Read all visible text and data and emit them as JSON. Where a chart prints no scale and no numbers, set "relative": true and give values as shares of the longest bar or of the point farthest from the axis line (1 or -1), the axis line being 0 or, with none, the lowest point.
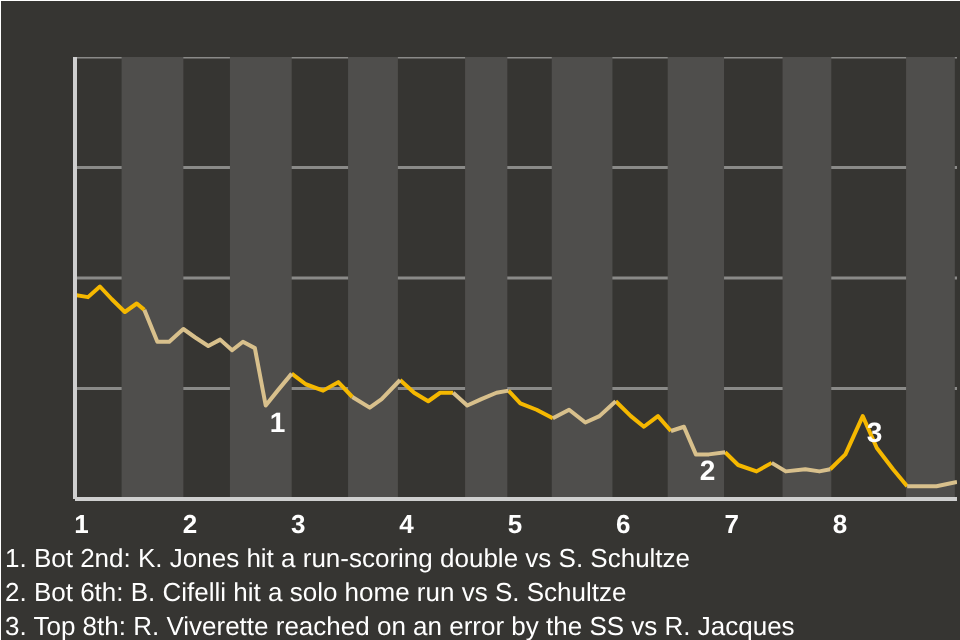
{
  "chart_data": {
    "type": "line",
    "relative": true,
    "ref_lines": [
      {
        "axis": "y",
        "value": 0.52,
        "color": "#8a8a88"
      },
      {
        "axis": "y",
        "value": 1.04,
        "color": "#8a8a88"
      },
      {
        "axis": "y",
        "value": 1.56,
        "color": "#8a8a88"
      },
      {
        "axis": "y",
        "value": 2.08,
        "color": "#8a8a88"
      }
    ],
    "x": [
      0.94,
      1.06,
      1.17,
      1.28,
      1.4,
      1.51,
      1.58,
      1.7,
      1.81,
      1.94,
      2.05,
      2.17,
      2.28,
      2.39,
      2.49,
      2.6,
      2.7,
      2.81,
      2.94,
      3.07,
      3.23,
      3.37,
      3.5,
      3.66,
      3.77,
      3.94,
      4.07,
      4.2,
      4.31,
      4.43,
      4.56,
      4.69,
      4.83,
      4.94,
      5.05,
      5.2,
      5.35,
      5.5,
      5.65,
      5.78,
      5.93,
      6.07,
      6.19,
      6.32,
      6.44,
      6.56,
      6.67,
      6.79,
      6.94,
      7.06,
      7.23,
      7.37,
      7.5,
      7.68,
      7.81,
      7.91,
      8.05,
      8.21,
      8.34,
      8.49,
      8.62,
      8.89,
      9.08
    ],
    "xlim": [
      0.94,
      9.08
    ],
    "xticks": [
      1,
      2,
      3,
      4,
      5,
      6,
      7,
      8
    ],
    "series": [
      {
        "color": "#f5b800",
        "values": [
          0.96,
          0.95,
          1.0,
          0.94,
          0.88,
          0.92,
          0.89,
          null,
          null,
          null,
          null,
          null,
          null,
          null,
          null,
          null,
          null,
          null,
          0.59,
          0.54,
          0.51,
          0.55,
          0.48,
          null,
          null,
          0.56,
          0.5,
          0.46,
          0.5,
          0.5,
          null,
          null,
          null,
          0.51,
          0.45,
          0.42,
          0.38,
          null,
          null,
          null,
          0.46,
          0.39,
          0.34,
          0.39,
          0.32,
          null,
          null,
          null,
          0.22,
          0.16,
          0.13,
          0.17,
          null,
          null,
          null,
          0.14,
          0.21,
          0.39,
          0.24,
          0.14,
          0.06,
          null,
          null
        ]
      },
      {
        "color": "#d8c08c",
        "values": [
          null,
          null,
          null,
          null,
          null,
          null,
          0.89,
          0.74,
          0.74,
          0.8,
          0.76,
          0.72,
          0.75,
          0.7,
          0.74,
          0.71,
          0.44,
          0.51,
          0.59,
          null,
          null,
          null,
          0.48,
          0.43,
          0.47,
          0.56,
          null,
          null,
          null,
          0.5,
          0.44,
          0.47,
          0.5,
          0.51,
          null,
          null,
          0.38,
          0.42,
          0.36,
          0.39,
          0.46,
          null,
          null,
          null,
          0.32,
          0.34,
          0.21,
          0.21,
          0.22,
          null,
          null,
          0.17,
          0.13,
          0.14,
          0.13,
          0.14,
          null,
          null,
          null,
          null,
          0.06,
          0.06,
          0.08
        ]
      }
    ],
    "bands": [
      {
        "axis": "x",
        "from": 1.37,
        "to": 1.94,
        "color": "#4f4e4c"
      },
      {
        "axis": "x",
        "from": 2.37,
        "to": 2.94,
        "color": "#4f4e4c"
      },
      {
        "axis": "x",
        "from": 3.46,
        "to": 3.92,
        "color": "#4f4e4c"
      },
      {
        "axis": "x",
        "from": 4.54,
        "to": 4.93,
        "color": "#4f4e4c"
      },
      {
        "axis": "x",
        "from": 5.34,
        "to": 5.9,
        "color": "#4f4e4c"
      },
      {
        "axis": "x",
        "from": 6.41,
        "to": 6.93,
        "color": "#4f4e4c"
      },
      {
        "axis": "x",
        "from": 7.47,
        "to": 7.92,
        "color": "#4f4e4c"
      },
      {
        "axis": "x",
        "from": 8.61,
        "to": 9.06,
        "color": "#4f4e4c"
      }
    ],
    "annotations": [
      {
        "text": "1",
        "x": 2.7,
        "y": 0.44
      },
      {
        "text": "2",
        "x": 6.67,
        "y": 0.21
      },
      {
        "text": "3",
        "x": 8.21,
        "y": 0.39
      },
      "1. Bot 2nd: K. Jones hit a run-scoring double vs S. Schultze",
      "2. Bot 6th: B. Cifelli hit a solo home run vs S. Schultze",
      "3. Top 8th: R. Viverette reached on an error by the SS vs R. Jacques"
    ]
  }
}
